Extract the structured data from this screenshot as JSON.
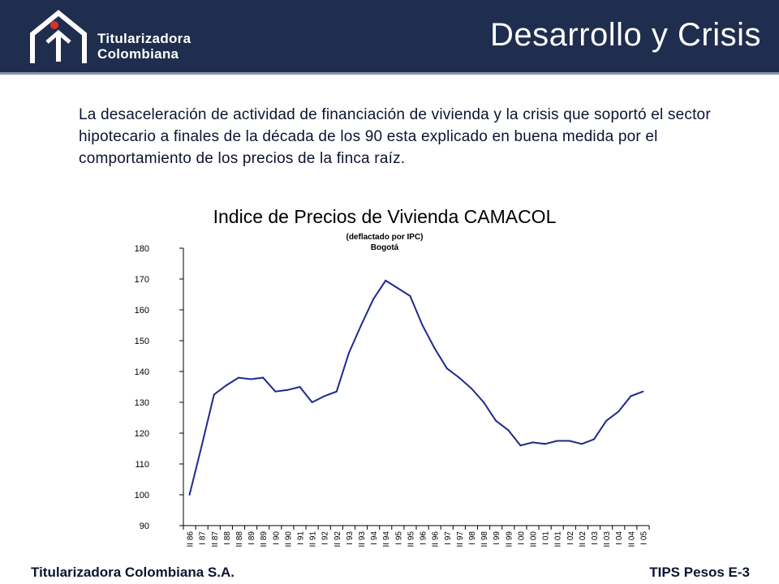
{
  "header": {
    "brand_line1": "Titularizadora",
    "brand_line2": "Colombiana",
    "title": "Desarrollo y Crisis",
    "background_color": "#1f2d4e"
  },
  "body_text": "La desaceleración de actividad de financiación de vivienda y la crisis que soportó el sector hipotecario a finales de la década de los 90 esta explicado en buena medida por el comportamiento de los precios de la finca raíz.",
  "chart_data": {
    "type": "line",
    "title": "Indice de Precios de Vivienda CAMACOL",
    "subtitle_line1": "(deflactado por IPC)",
    "subtitle_line2": "Bogotá",
    "xlabel": "",
    "ylabel": "",
    "ylim": [
      90,
      180
    ],
    "yticks": [
      90,
      100,
      110,
      120,
      130,
      140,
      150,
      160,
      170,
      180
    ],
    "grid": false,
    "legend": "none",
    "line_color": "#1c2a8c",
    "categories": [
      "II 86",
      "I 87",
      "II 87",
      "I 88",
      "II 88",
      "I 89",
      "II 89",
      "I 90",
      "II 90",
      "I 91",
      "II 91",
      "I 92",
      "II 92",
      "I 93",
      "II 93",
      "I 94",
      "II 94",
      "I 95",
      "II 95",
      "I 96",
      "II 96",
      "I 97",
      "II 97",
      "I 98",
      "II 98",
      "I 99",
      "II 99",
      "I 00",
      "II 00",
      "I 01",
      "II 01",
      "I 02",
      "II 02",
      "I 03",
      "II 03",
      "I 04",
      "II 04",
      "I 05"
    ],
    "values": [
      100,
      116,
      132.5,
      135.5,
      138,
      137.5,
      138,
      133.5,
      134,
      135,
      130,
      132,
      133.5,
      146,
      155,
      163.5,
      169.5,
      167,
      164.5,
      155,
      147.5,
      141,
      138,
      134.5,
      130,
      124,
      121,
      116,
      117,
      116.5,
      117.5,
      117.5,
      116.5,
      118,
      124,
      127,
      132,
      133.5
    ]
  },
  "footer": {
    "left": "Titularizadora Colombiana S.A.",
    "right": "TIPS Pesos E-3"
  }
}
